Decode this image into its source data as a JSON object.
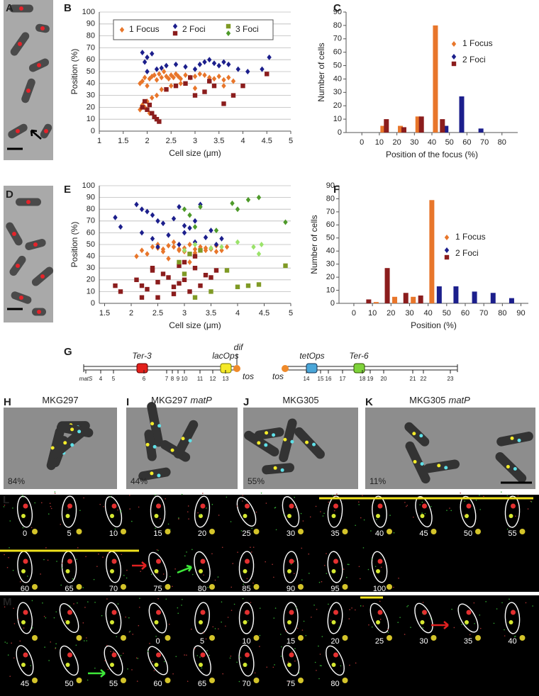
{
  "panel_letters": [
    "A",
    "B",
    "C",
    "D",
    "E",
    "F",
    "G",
    "H",
    "I",
    "J",
    "K",
    "L",
    "M"
  ],
  "chart_data": [
    {
      "type": "scatter",
      "xlabel": "Cell size (μm)",
      "ylabel": "Position (%)",
      "xlim": [
        1,
        5
      ],
      "ylim": [
        0,
        100
      ],
      "xticks": [
        1,
        1.5,
        2,
        2.5,
        3,
        3.5,
        4,
        4.5,
        5
      ],
      "yticks": [
        0,
        10,
        20,
        30,
        40,
        50,
        60,
        70,
        80,
        90,
        100
      ],
      "grid": true,
      "legend": "top",
      "series": [
        {
          "name": "1 Focus",
          "color": "#e8762b",
          "marker": "diamond",
          "x": [
            1.85,
            1.9,
            1.95,
            2.0,
            2.05,
            2.1,
            2.15,
            2.2,
            2.25,
            2.3,
            2.35,
            2.4,
            2.45,
            2.5,
            2.55,
            2.6,
            2.65,
            2.7,
            2.8,
            2.9,
            3.0,
            3.1,
            3.2,
            3.3,
            3.4,
            3.5,
            3.6,
            3.7,
            3.8,
            2.0,
            2.1,
            2.2,
            1.9,
            2.3,
            2.5,
            2.7,
            3.0,
            3.3,
            3.6,
            1.85,
            1.95,
            2.05
          ],
          "values": [
            40,
            42,
            45,
            38,
            44,
            46,
            47,
            43,
            48,
            45,
            50,
            46,
            44,
            47,
            45,
            48,
            46,
            44,
            47,
            45,
            46,
            48,
            47,
            45,
            44,
            46,
            43,
            45,
            42,
            25,
            28,
            30,
            22,
            35,
            38,
            40,
            36,
            42,
            38,
            18,
            20,
            15
          ]
        },
        {
          "name": "2 Foci",
          "color": "#1c1f8c",
          "marker": "diamond",
          "x": [
            1.9,
            2.0,
            2.1,
            1.95,
            2.2,
            2.4,
            2.6,
            2.8,
            3.0,
            3.1,
            3.2,
            3.3,
            3.4,
            3.5,
            3.6,
            3.7,
            3.9,
            4.1,
            4.4,
            4.55,
            2.3,
            2.0
          ],
          "values": [
            66,
            62,
            65,
            58,
            52,
            55,
            56,
            54,
            52,
            56,
            58,
            60,
            57,
            55,
            58,
            56,
            52,
            50,
            52,
            62,
            53,
            50
          ]
        },
        {
          "color": "#8b1d1d",
          "marker": "square",
          "x": [
            1.9,
            2.0,
            2.1,
            2.15,
            2.2,
            2.05,
            1.95,
            2.25,
            2.4,
            2.6,
            2.8,
            3.0,
            3.2,
            3.4,
            3.6,
            3.8,
            4.0,
            4.5,
            2.9,
            3.3
          ],
          "values": [
            20,
            18,
            15,
            12,
            10,
            22,
            25,
            8,
            35,
            38,
            40,
            30,
            33,
            38,
            23,
            30,
            38,
            48,
            45,
            42
          ]
        },
        {
          "name": "3 Foci",
          "color": "#7f9a25",
          "marker": "square",
          "x": [],
          "values": []
        },
        {
          "color": "#4e9a2a",
          "marker": "diamond",
          "x": [],
          "values": []
        }
      ]
    },
    {
      "type": "bar",
      "xlabel": "Position of the focus (%)",
      "ylabel": "Number of cells",
      "xlim": [
        -9,
        89
      ],
      "ylim": [
        0,
        90
      ],
      "xticks": [
        0,
        10,
        20,
        30,
        40,
        50,
        60,
        70,
        80
      ],
      "yticks": [
        0,
        10,
        20,
        30,
        40,
        50,
        60,
        70,
        80,
        90
      ],
      "grid": false,
      "legend": "right",
      "series": [
        {
          "name": "1 Focus",
          "color": "#e8762b",
          "marker": "diamond",
          "x": [
            12,
            22,
            32,
            42
          ],
          "values": [
            5,
            5,
            12,
            80
          ]
        },
        {
          "name": "2 Foci",
          "color": "#1c1f8c",
          "marker": "diamond",
          "x": [
            48,
            57,
            68
          ],
          "values": [
            5,
            27,
            3
          ]
        },
        {
          "color": "#8b1d1d",
          "marker": "square",
          "x": [
            14,
            24,
            34,
            46
          ],
          "values": [
            10,
            4,
            12,
            10
          ]
        }
      ]
    },
    {
      "type": "scatter",
      "xlabel": "Cell size (μm)",
      "ylabel": "Position (%)",
      "xlim": [
        1.4,
        5
      ],
      "ylim": [
        0,
        100
      ],
      "xticks": [
        1.5,
        2,
        2.5,
        3,
        3.5,
        4,
        4.5,
        5
      ],
      "yticks": [
        0,
        10,
        20,
        30,
        40,
        50,
        60,
        70,
        80,
        90,
        100
      ],
      "grid": true,
      "series": [
        {
          "color": "#e8762b",
          "marker": "diamond",
          "x": [
            2.2,
            2.4,
            2.5,
            2.6,
            2.7,
            2.8,
            2.9,
            3.0,
            3.1,
            3.2,
            3.3,
            3.4,
            3.5,
            3.6,
            3.7,
            2.3,
            2.6,
            2.9,
            3.2,
            3.5,
            2.5,
            2.8,
            3.0,
            3.4,
            3.8,
            2.1,
            2.7,
            3.1,
            3.3,
            3.6
          ],
          "values": [
            45,
            48,
            47,
            46,
            49,
            48,
            45,
            47,
            50,
            46,
            48,
            47,
            46,
            49,
            45,
            42,
            44,
            46,
            43,
            47,
            50,
            52,
            44,
            45,
            48,
            40,
            38,
            35,
            46,
            44
          ]
        },
        {
          "color": "#1c1f8c",
          "marker": "diamond",
          "x": [
            1.7,
            1.8,
            2.1,
            2.2,
            2.3,
            2.4,
            2.5,
            2.6,
            2.8,
            2.9,
            3.0,
            3.1,
            3.2,
            3.3,
            3.5,
            3.7,
            2.2,
            2.4,
            2.7,
            3.0,
            3.4,
            2.5,
            2.9,
            3.2,
            3.6
          ],
          "values": [
            73,
            65,
            84,
            80,
            78,
            75,
            70,
            68,
            72,
            82,
            66,
            64,
            70,
            84,
            62,
            55,
            60,
            55,
            58,
            60,
            56,
            48,
            50,
            52,
            50
          ]
        },
        {
          "color": "#8b1d1d",
          "marker": "square",
          "x": [
            1.7,
            1.8,
            2.1,
            2.2,
            2.3,
            2.4,
            2.5,
            2.6,
            2.7,
            2.8,
            2.9,
            3.0,
            3.1,
            3.2,
            3.3,
            3.4,
            3.5,
            2.2,
            2.5,
            2.8,
            3.0,
            3.2,
            2.4,
            2.9,
            3.6
          ],
          "values": [
            15,
            10,
            20,
            15,
            12,
            28,
            18,
            25,
            22,
            14,
            17,
            20,
            10,
            30,
            15,
            24,
            22,
            5,
            5,
            8,
            35,
            40,
            30,
            32,
            28
          ]
        },
        {
          "color": "#7f9a25",
          "marker": "square",
          "x": [
            2.9,
            3.0,
            3.2,
            3.1,
            3.5,
            3.8,
            4.0,
            4.2,
            4.4,
            4.9,
            3.3
          ],
          "values": [
            35,
            25,
            5,
            42,
            10,
            28,
            14,
            15,
            16,
            32,
            45
          ]
        },
        {
          "color": "#4e9a2a",
          "marker": "diamond",
          "x": [
            3.0,
            3.1,
            3.2,
            3.3,
            3.6,
            4.0,
            4.2,
            4.4,
            4.9,
            3.9
          ],
          "values": [
            80,
            75,
            65,
            82,
            62,
            80,
            88,
            90,
            69,
            85
          ]
        },
        {
          "color": "#9be36b",
          "marker": "diamond",
          "x": [
            3.0,
            3.2,
            3.5,
            3.7,
            4.0,
            4.3,
            4.4,
            4.45
          ],
          "values": [
            45,
            50,
            47,
            48,
            52,
            48,
            42,
            50
          ]
        }
      ]
    },
    {
      "type": "bar",
      "xlabel": "Position (%)",
      "ylabel": "Number of cells",
      "xlim": [
        -8,
        94
      ],
      "ylim": [
        0,
        90
      ],
      "xticks": [
        0,
        10,
        20,
        30,
        40,
        50,
        60,
        70,
        80,
        90
      ],
      "yticks": [
        0,
        10,
        20,
        30,
        40,
        50,
        60,
        70,
        80,
        90
      ],
      "grid": false,
      "legend": "right",
      "series": [
        {
          "name": "1 Focus",
          "color": "#e8762b",
          "marker": "diamond",
          "x": [
            12,
            22,
            32,
            42
          ],
          "values": [
            1,
            5,
            5,
            79
          ]
        },
        {
          "name": "2 Foci",
          "color": "#1c1f8c",
          "marker": "diamond",
          "x": [
            46,
            55,
            65,
            75,
            85
          ],
          "values": [
            13,
            13,
            9,
            8,
            4
          ]
        },
        {
          "color": "#8b1d1d",
          "marker": "square",
          "x": [
            8,
            18,
            28,
            36
          ],
          "values": [
            3,
            27,
            8,
            6
          ]
        }
      ]
    }
  ],
  "gene_map": {
    "loci": [
      "Ter-3",
      "lacOps",
      "dif",
      "tos",
      "tos",
      "tetOps",
      "Ter-6"
    ],
    "sites": [
      "matS",
      4,
      5,
      6,
      7,
      8,
      9,
      10,
      11,
      12,
      13,
      14,
      15,
      16,
      17,
      18,
      19,
      20,
      21,
      22,
      23
    ]
  },
  "strains": [
    {
      "name": "MKG297",
      "percent": "84%"
    },
    {
      "name": "MKG297",
      "gene": "matP",
      "percent": "44%"
    },
    {
      "name": "MKG305",
      "percent": "55%"
    },
    {
      "name": "MKG305",
      "gene": "matP",
      "percent": "11%"
    }
  ],
  "time_lapse": {
    "L": [
      0,
      5,
      10,
      15,
      20,
      25,
      30,
      35,
      40,
      45,
      50,
      55,
      60,
      65,
      70,
      75,
      80,
      85,
      90,
      95,
      100
    ],
    "M": [
      0,
      5,
      10,
      15,
      20,
      25,
      30,
      35,
      40,
      45,
      50,
      55,
      60,
      65,
      70,
      75,
      80
    ]
  }
}
